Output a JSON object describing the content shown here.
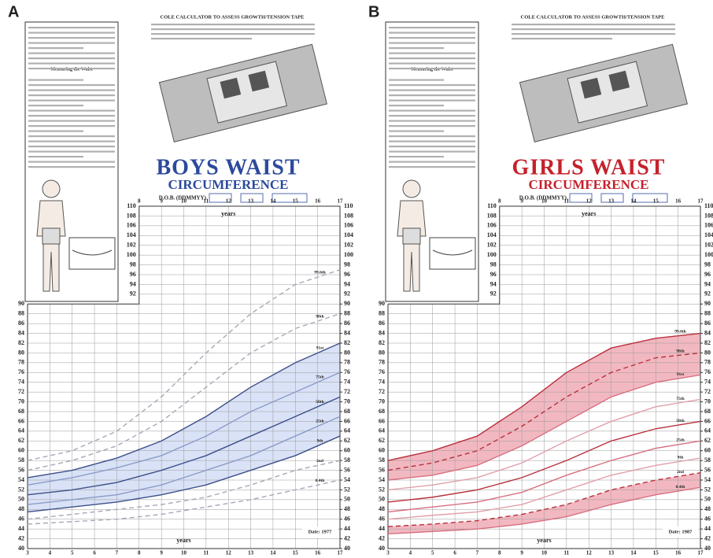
{
  "chart_data": [
    {
      "type": "line",
      "panel_label": "A",
      "calculator_title": "COLE CALCULATOR TO ASSESS GROWTH/TENSION TAPE",
      "title": "BOYS WAIST",
      "subtitle": "CIRCUMFERENCE",
      "dob_label": "D.O.B. (DDMMYY)",
      "note_title": "Measuring the Waist",
      "x_label": "years",
      "annotation": "Date: 1977",
      "title_color": "#2c4a9c",
      "grid": true,
      "x": [
        3,
        5,
        7,
        9,
        11,
        13,
        15,
        17
      ],
      "xlim": [
        3,
        17
      ],
      "xticks": [
        3,
        4,
        5,
        6,
        7,
        8,
        9,
        10,
        11,
        12,
        13,
        14,
        15,
        16,
        17
      ],
      "x2ticks": [
        8,
        9,
        10,
        11,
        12,
        13,
        14,
        15,
        16,
        17
      ],
      "ylim": [
        40,
        110
      ],
      "yticks": [
        40,
        42,
        44,
        46,
        48,
        50,
        52,
        54,
        56,
        58,
        60,
        62,
        64,
        66,
        68,
        70,
        72,
        74,
        76,
        78,
        80,
        82,
        84,
        86,
        88,
        90
      ],
      "y2lim": [
        40,
        110
      ],
      "y2ticks": [
        40,
        42,
        44,
        46,
        48,
        50,
        52,
        54,
        56,
        58,
        60,
        62,
        64,
        66,
        68,
        70,
        72,
        74,
        76,
        78,
        80,
        82,
        84,
        86,
        88,
        90,
        92,
        94,
        96,
        98,
        100,
        102,
        104,
        106,
        108,
        110
      ],
      "shading": [
        [
          "9th",
          "91st"
        ]
      ],
      "shade_color": "#c9d6f2",
      "series": [
        {
          "name": "99.6th",
          "color": "#a8a8b8",
          "dashed": true,
          "values": [
            58,
            60,
            64,
            71,
            80,
            88,
            94,
            97
          ]
        },
        {
          "name": "98th",
          "color": "#a8a8b8",
          "dashed": true,
          "values": [
            56,
            58,
            61,
            66,
            73,
            80,
            85,
            88
          ]
        },
        {
          "name": "91st",
          "color": "#3c4f8a",
          "dashed": false,
          "values": [
            54.5,
            56,
            58.5,
            62,
            67,
            73,
            78,
            82
          ]
        },
        {
          "name": "75th",
          "color": "#8c9cc8",
          "dashed": false,
          "values": [
            53,
            54.5,
            56.5,
            59,
            63,
            68,
            72,
            76
          ]
        },
        {
          "name": "50th",
          "color": "#3c4f8a",
          "dashed": false,
          "values": [
            51,
            52,
            53.5,
            56,
            59,
            63,
            67,
            71
          ]
        },
        {
          "name": "25th",
          "color": "#8c9cc8",
          "dashed": false,
          "values": [
            49,
            50,
            51,
            53,
            56,
            59,
            63,
            67
          ]
        },
        {
          "name": "9th",
          "color": "#3c4f8a",
          "dashed": false,
          "values": [
            47.5,
            48.5,
            49.5,
            51,
            53,
            56,
            59,
            63
          ]
        },
        {
          "name": "2nd",
          "color": "#a8a8b8",
          "dashed": true,
          "values": [
            46,
            47,
            48,
            49,
            50.5,
            53,
            56,
            58
          ]
        },
        {
          "name": "0.4th",
          "color": "#a8a8b8",
          "dashed": true,
          "values": [
            45,
            45.5,
            46,
            47,
            48.5,
            50,
            52,
            54
          ]
        }
      ]
    },
    {
      "type": "line",
      "panel_label": "B",
      "calculator_title": "COLE CALCULATOR TO ASSESS GROWTH/TENSION TAPE",
      "title": "GIRLS WAIST",
      "subtitle": "CIRCUMFERENCE",
      "dob_label": "D.O.B. (DDMMYY)",
      "note_title": "Measuring the Waist",
      "x_label": "years",
      "annotation": "Date: 1987",
      "title_color": "#c4222c",
      "grid": true,
      "x": [
        3,
        5,
        7,
        9,
        11,
        13,
        15,
        17
      ],
      "xlim": [
        3,
        17
      ],
      "xticks": [
        3,
        4,
        5,
        6,
        7,
        8,
        9,
        10,
        11,
        12,
        13,
        14,
        15,
        16,
        17
      ],
      "x2ticks": [
        8,
        9,
        10,
        11,
        12,
        13,
        14,
        15,
        16,
        17
      ],
      "ylim": [
        40,
        110
      ],
      "yticks": [
        40,
        42,
        44,
        46,
        48,
        50,
        52,
        54,
        56,
        58,
        60,
        62,
        64,
        66,
        68,
        70,
        72,
        74,
        76,
        78,
        80,
        82,
        84,
        86,
        88,
        90
      ],
      "y2lim": [
        40,
        110
      ],
      "y2ticks": [
        40,
        42,
        44,
        46,
        48,
        50,
        52,
        54,
        56,
        58,
        60,
        62,
        64,
        66,
        68,
        70,
        72,
        74,
        76,
        78,
        80,
        82,
        84,
        86,
        88,
        90,
        92,
        94,
        96,
        98,
        100,
        102,
        104,
        106,
        108,
        110
      ],
      "shading": [
        [
          "91st",
          "99.6th"
        ],
        [
          "0.4th",
          "2nd"
        ]
      ],
      "shade_color": "#ec9aa6",
      "series": [
        {
          "name": "99.6th",
          "color": "#b8303c",
          "dashed": false,
          "values": [
            58,
            60,
            63,
            69,
            76,
            81,
            83,
            84
          ]
        },
        {
          "name": "98th",
          "color": "#b8303c",
          "dashed": true,
          "values": [
            56,
            57.5,
            60,
            65,
            71,
            76,
            79,
            80
          ]
        },
        {
          "name": "91st",
          "color": "#d77080",
          "dashed": false,
          "values": [
            54,
            55,
            57,
            61,
            66,
            71,
            74,
            75.5
          ]
        },
        {
          "name": "75th",
          "color": "#e0a0aa",
          "dashed": false,
          "values": [
            52,
            53,
            54.5,
            57.5,
            62,
            66,
            69,
            70.5
          ]
        },
        {
          "name": "50th",
          "color": "#b8303c",
          "dashed": false,
          "values": [
            49.5,
            50.5,
            52,
            54.5,
            58,
            62,
            64.5,
            66
          ]
        },
        {
          "name": "25th",
          "color": "#d77080",
          "dashed": false,
          "values": [
            47.5,
            48.5,
            49.5,
            51.5,
            55,
            58,
            60.5,
            62
          ]
        },
        {
          "name": "9th",
          "color": "#e0a0aa",
          "dashed": false,
          "values": [
            46,
            46.8,
            47.5,
            49,
            52,
            55,
            57,
            58.5
          ]
        },
        {
          "name": "2nd",
          "color": "#b8303c",
          "dashed": true,
          "values": [
            44.5,
            45,
            45.7,
            47,
            49,
            52,
            54,
            55.5
          ]
        },
        {
          "name": "0.4th",
          "color": "#d77080",
          "dashed": false,
          "values": [
            43,
            43.5,
            44,
            45,
            46.5,
            49,
            51,
            52.5
          ]
        }
      ]
    }
  ]
}
